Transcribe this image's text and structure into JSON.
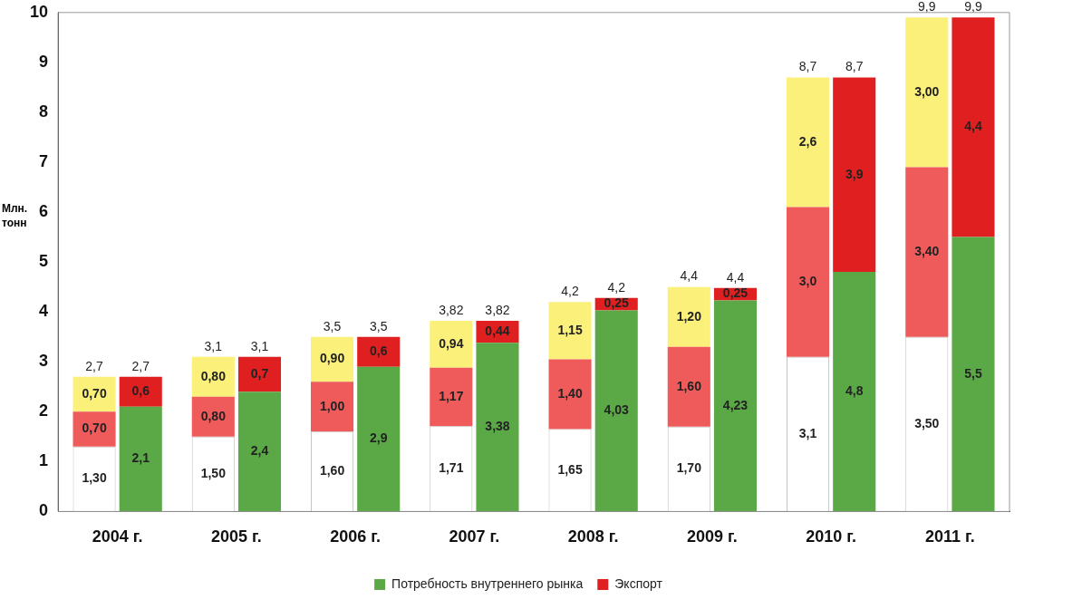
{
  "chart_data": {
    "type": "bar",
    "ylabel": "Млн. тонн",
    "categories": [
      "2004 г.",
      "2005 г.",
      "2006 г.",
      "2007 г.",
      "2008 г.",
      "2009 г.",
      "2010 г.",
      "2011 г."
    ],
    "ylim": [
      0,
      10
    ],
    "yticks": [
      0,
      1,
      2,
      3,
      4,
      5,
      6,
      7,
      8,
      9,
      10
    ],
    "grid": false,
    "legend": "bottom",
    "series": [
      {
        "color": "#ffffff",
        "base": [
          0,
          0,
          0,
          0,
          0,
          0,
          0,
          0
        ],
        "values": [
          1.3,
          1.5,
          1.6,
          1.71,
          1.65,
          1.7,
          3.1,
          3.5
        ],
        "value_labels": [
          "1,30",
          "1,50",
          "1,60",
          "1,71",
          "1,65",
          "1,70",
          "3,1",
          "3,50"
        ]
      },
      {
        "color": "#ef5a5a",
        "base": [
          1.3,
          1.5,
          1.6,
          1.71,
          1.65,
          1.7,
          3.1,
          3.5
        ],
        "values": [
          0.7,
          0.8,
          1.0,
          1.17,
          1.4,
          1.6,
          3.0,
          3.4
        ],
        "value_labels": [
          "0,70",
          "0,80",
          "1,00",
          "1,17",
          "1,40",
          "1,60",
          "3,0",
          "3,40"
        ]
      },
      {
        "color": "#fbf07a",
        "base": [
          2.0,
          2.3,
          2.6,
          2.88,
          3.05,
          3.3,
          6.1,
          6.9
        ],
        "values": [
          0.7,
          0.8,
          0.9,
          0.94,
          1.15,
          1.2,
          2.6,
          3.0
        ],
        "value_labels": [
          "0,70",
          "0,80",
          "0,90",
          "0,94",
          "1,15",
          "1,20",
          "2,6",
          "3,00"
        ]
      },
      {
        "name": "Потребность внутреннего рынка",
        "color": "#5aa846",
        "base": [
          0,
          0,
          0,
          0,
          0,
          0,
          0,
          0
        ],
        "values": [
          2.1,
          2.4,
          2.9,
          3.38,
          4.03,
          4.23,
          4.8,
          5.5
        ],
        "value_labels": [
          "2,1",
          "2,4",
          "2,9",
          "3,38",
          "4,03",
          "4,23",
          "4,8",
          "5,5"
        ]
      },
      {
        "name": "Экспорт",
        "color": "#e02020",
        "base": [
          2.1,
          2.4,
          2.9,
          3.38,
          4.03,
          4.23,
          4.8,
          5.5
        ],
        "values": [
          0.6,
          0.7,
          0.6,
          0.44,
          0.25,
          0.25,
          3.9,
          4.4
        ],
        "value_labels": [
          "0,6",
          "0,7",
          "0,6",
          "0,44",
          "0,25",
          "0,25",
          "3,9",
          "4,4"
        ]
      }
    ],
    "totals": [
      [
        "2,7",
        "2,7"
      ],
      [
        "3,1",
        "3,1"
      ],
      [
        "3,5",
        "3,5"
      ],
      [
        "3,82",
        "3,82"
      ],
      [
        "4,2",
        "4,2"
      ],
      [
        "4,4",
        "4,4"
      ],
      [
        "8,7",
        "8,7"
      ],
      [
        "9,9",
        "9,9"
      ]
    ]
  }
}
